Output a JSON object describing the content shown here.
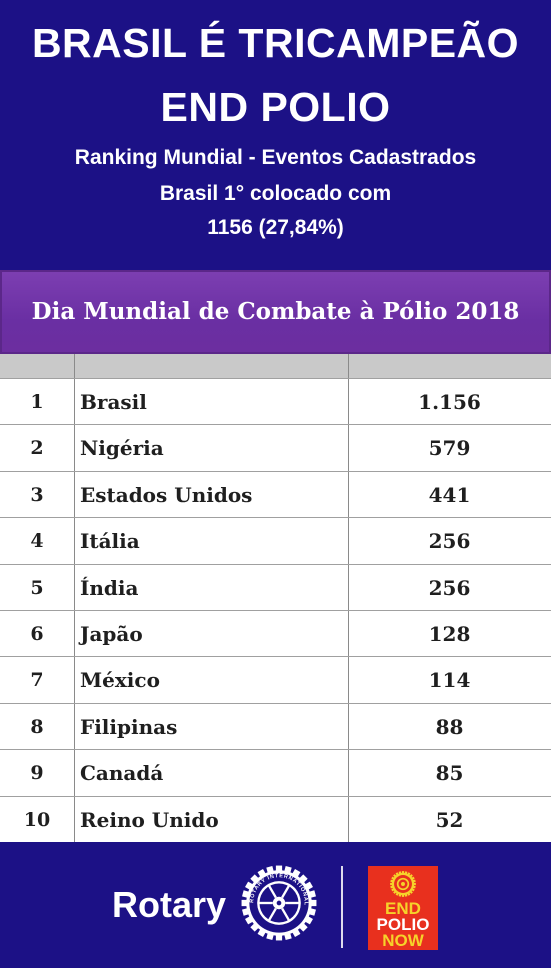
{
  "header": {
    "title_line1": "BRASIL É  TRICAMPEÃO",
    "title_line2": "END POLIO",
    "subtitle_line1": "Ranking Mundial - Eventos Cadastrados",
    "subtitle_line2": "Brasil  1° colocado com",
    "subtitle_line3": "1156 (27,84%)"
  },
  "table": {
    "title": "Dia Mundial de Combate à Pólio 2018",
    "rows": [
      {
        "rank": "1",
        "country": "Brasil",
        "value": "1.156"
      },
      {
        "rank": "2",
        "country": "Nigéria",
        "value": "579"
      },
      {
        "rank": "3",
        "country": "Estados Unidos",
        "value": "441"
      },
      {
        "rank": "4",
        "country": "Itália",
        "value": "256"
      },
      {
        "rank": "5",
        "country": "Índia",
        "value": "256"
      },
      {
        "rank": "6",
        "country": "Japão",
        "value": "128"
      },
      {
        "rank": "7",
        "country": "México",
        "value": "114"
      },
      {
        "rank": "8",
        "country": "Filipinas",
        "value": "88"
      },
      {
        "rank": "9",
        "country": "Canadá",
        "value": "85"
      },
      {
        "rank": "10",
        "country": "Reino Unido",
        "value": "52"
      }
    ]
  },
  "footer": {
    "rotary_label": "Rotary",
    "wheel_text": "ROTARY INTERNATIONAL",
    "endpolio": {
      "line1": "END",
      "line2": "POLIO",
      "line3": "NOW"
    }
  },
  "colors": {
    "background": "#1c1186",
    "table_title": "#6c2e9f",
    "endpolio_red": "#e8301e",
    "endpolio_yellow": "#f6d22a"
  },
  "icons": [
    "rotary-wheel-icon",
    "endpolio-logo-icon"
  ]
}
